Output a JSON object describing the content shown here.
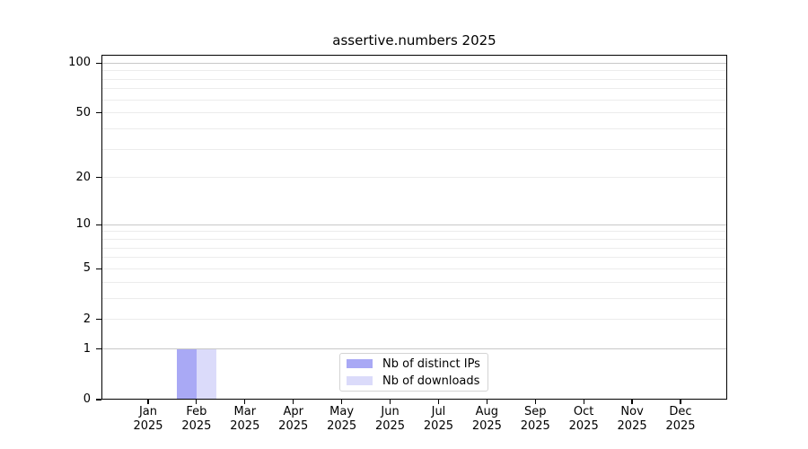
{
  "chart_data": {
    "type": "bar",
    "title": "assertive.numbers 2025",
    "categories": [
      "Jan",
      "Feb",
      "Mar",
      "Apr",
      "May",
      "Jun",
      "Jul",
      "Aug",
      "Sep",
      "Oct",
      "Nov",
      "Dec"
    ],
    "year": "2025",
    "series": [
      {
        "name": "Nb of distinct IPs",
        "color": "#a9a9f5",
        "values": [
          0,
          1,
          0,
          0,
          0,
          0,
          0,
          0,
          0,
          0,
          0,
          0
        ]
      },
      {
        "name": "Nb of downloads",
        "color": "#dbdbfa",
        "values": [
          0,
          1,
          0,
          0,
          0,
          0,
          0,
          0,
          0,
          0,
          0,
          0
        ]
      }
    ],
    "y_scale": "log1p",
    "y_ticks": [
      0,
      1,
      2,
      5,
      10,
      20,
      50,
      100
    ],
    "y_tick_labels": [
      "0",
      "1",
      "2",
      "5",
      "10",
      "20",
      "50",
      "100"
    ],
    "y_minor_gridlines": [
      3,
      4,
      6,
      7,
      8,
      9,
      30,
      40,
      60,
      70,
      80,
      90
    ],
    "ylim": [
      0,
      112
    ],
    "xlabel": "",
    "ylabel": "",
    "grid": true,
    "legend_position": "inside-bottom-center",
    "colors": {
      "major_grid": "#c8c8c8",
      "minor_grid": "#ececec",
      "axis": "#000000",
      "legend_border": "#d4d4d4",
      "background": "#ffffff"
    }
  }
}
